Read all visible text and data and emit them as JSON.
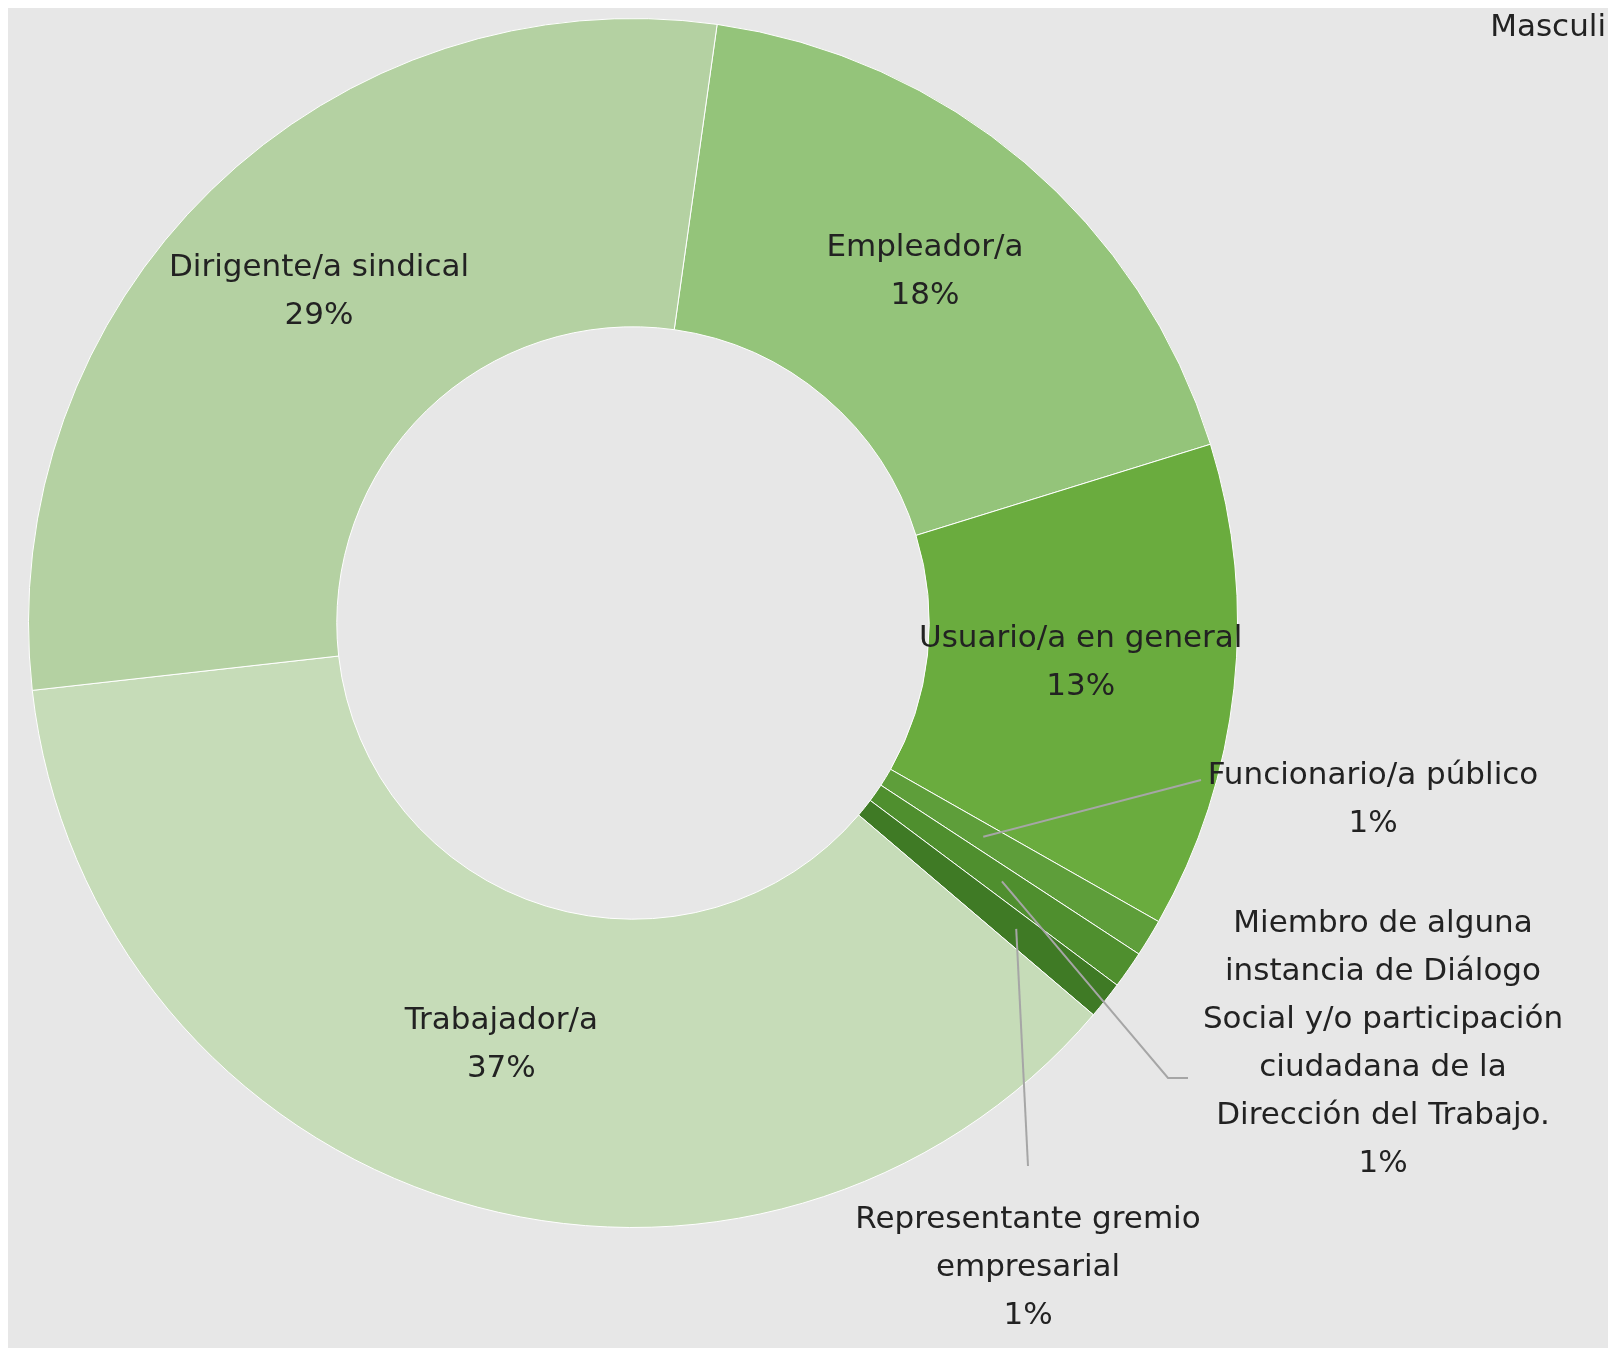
{
  "chart_data": {
    "type": "donut",
    "categories": [
      "Empleador/a",
      "Usuario/a en general",
      "Funcionario/a público",
      "Miembro de alguna instancia de Diálogo Social y/o participación ciudadana de la Dirección del Trabajo.",
      "Representante gremio empresarial",
      "Trabajador/a",
      "Dirigente/a sindical"
    ],
    "values": [
      18,
      13,
      1,
      1,
      1,
      37,
      29
    ],
    "colors": [
      "#94c47a",
      "#6aac3e",
      "#5e9e3a",
      "#4f8f2e",
      "#3f7a25",
      "#c6dcb8",
      "#b4d1a2"
    ],
    "value_labels": [
      "18%",
      "13%",
      "1%",
      "1%",
      "1%",
      "37%",
      "29%"
    ],
    "legend": false,
    "annotations": [
      "Masculi"
    ]
  }
}
